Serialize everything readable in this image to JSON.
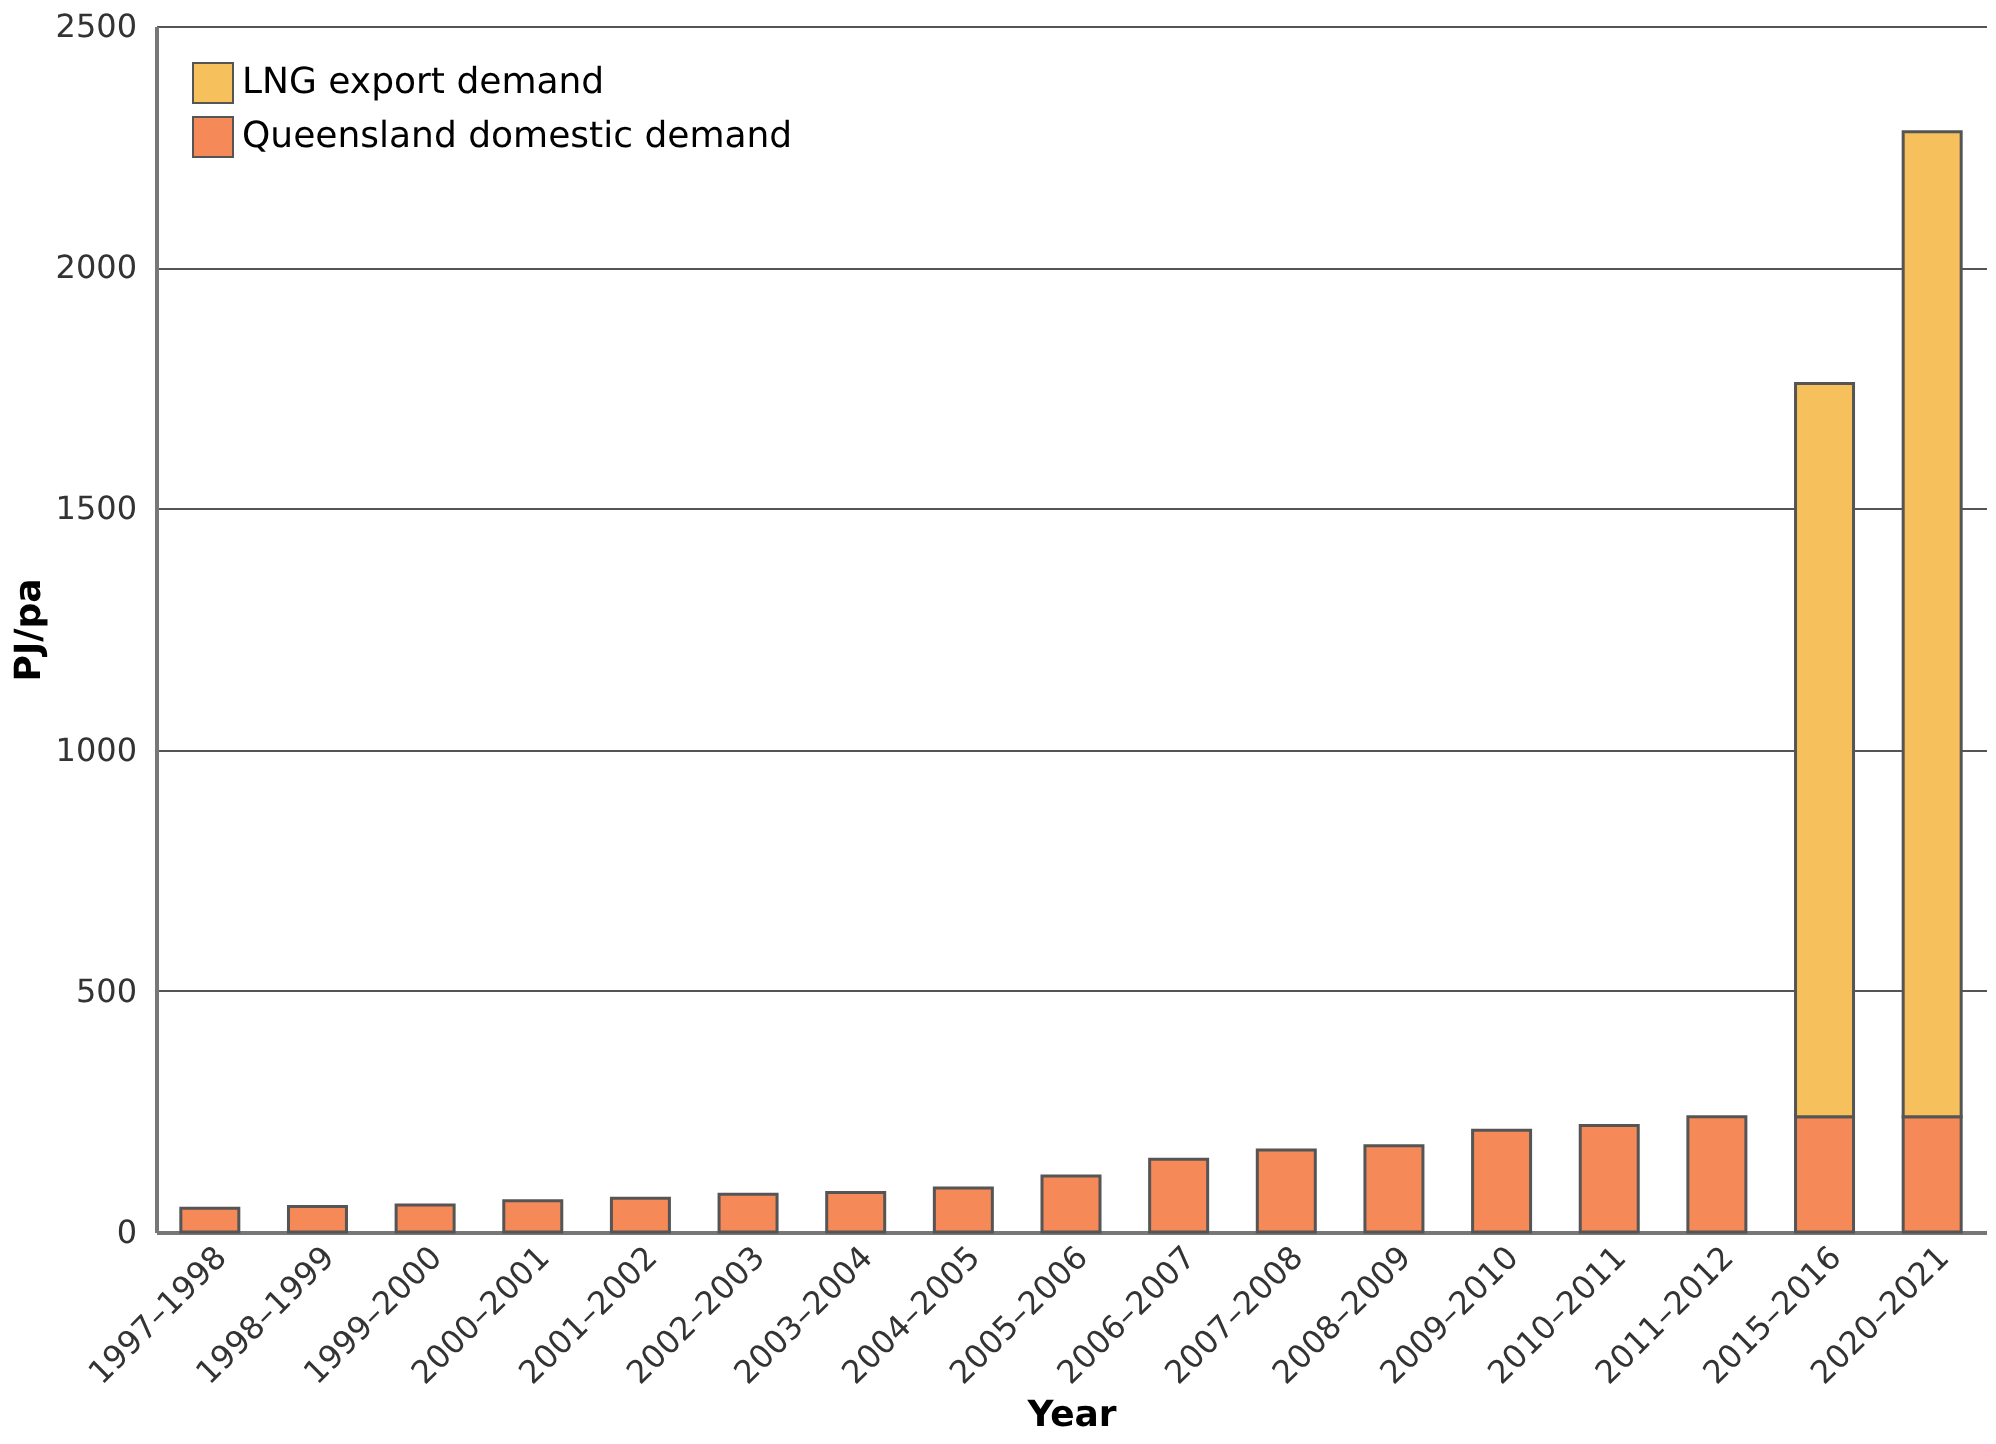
{
  "chart_data": {
    "type": "bar",
    "stacked": true,
    "xlabel": "Year",
    "ylabel": "PJ/pa",
    "categories": [
      "1997–1998",
      "1998–1999",
      "1999–2000",
      "2000–2001",
      "2001–2002",
      "2002–2003",
      "2003–2004",
      "2004–2005",
      "2005–2006",
      "2006–2007",
      "2007–2008",
      "2008–2009",
      "2009–2010",
      "2010–2011",
      "2011–2012",
      "2015–2016",
      "2020–2021"
    ],
    "series": [
      {
        "name": "Queensland domestic demand",
        "color": "#f58958",
        "values": [
          49,
          53,
          56,
          65,
          70,
          78,
          82,
          91,
          116,
          151,
          170,
          179,
          211,
          221,
          239,
          239,
          239
        ]
      },
      {
        "name": "LNG export demand",
        "color": "#f6c05c",
        "values": [
          null,
          null,
          null,
          null,
          null,
          null,
          null,
          null,
          null,
          null,
          null,
          null,
          null,
          null,
          null,
          1520,
          2042
        ]
      }
    ],
    "ylim": [
      0,
      2500
    ],
    "yticks": [
      0,
      500,
      1000,
      1500,
      2000,
      2500
    ],
    "grid": "y",
    "legend": "top left"
  }
}
